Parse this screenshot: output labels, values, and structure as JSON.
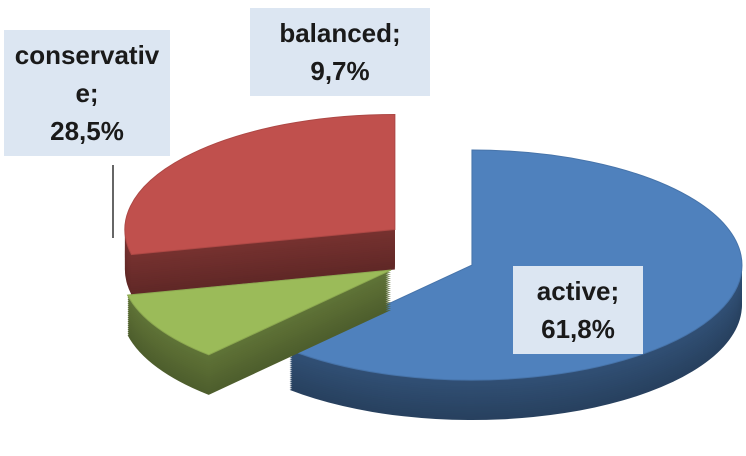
{
  "chart_data": {
    "type": "pie",
    "three_d": true,
    "exploded": true,
    "labels": [
      "active;",
      "balanced;",
      "conservative;"
    ],
    "values": [
      61.8,
      9.7,
      28.5
    ],
    "value_labels": [
      "61,8%",
      "9,7%",
      "28,5%"
    ],
    "colors": [
      "#4f81bd",
      "#9bbb59",
      "#c0504d"
    ]
  }
}
